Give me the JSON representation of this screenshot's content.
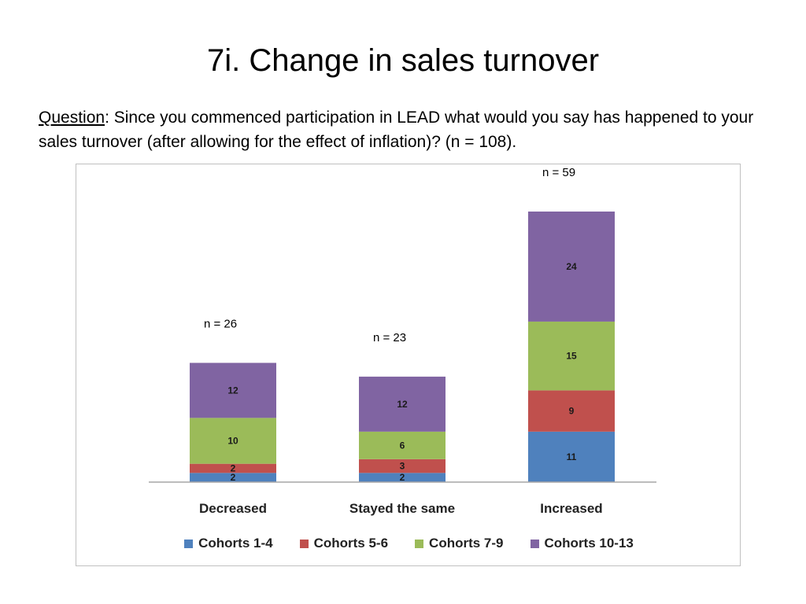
{
  "slide": {
    "title": "7i. Change in sales turnover",
    "question_label": "Question",
    "question_text": ": Since you commenced participation in LEAD what would you say has happened to your sales turnover (after allowing for the effect of inflation)? (n = 108)."
  },
  "chart_data": {
    "type": "bar",
    "stacked": true,
    "categories": [
      "Decreased",
      "Stayed the same",
      "Increased"
    ],
    "series": [
      {
        "name": "Cohorts 1-4",
        "values": [
          2,
          2,
          11
        ],
        "color": "#4F81BD"
      },
      {
        "name": "Cohorts 5-6",
        "values": [
          2,
          3,
          9
        ],
        "color": "#C0504D"
      },
      {
        "name": "Cohorts 7-9",
        "values": [
          10,
          6,
          15
        ],
        "color": "#9BBB59"
      },
      {
        "name": "Cohorts 10-13",
        "values": [
          12,
          12,
          24
        ],
        "color": "#8064A2"
      }
    ],
    "totals_labels": [
      "n = 26",
      "n = 23",
      "n = 59"
    ],
    "title": "",
    "xlabel": "",
    "ylabel": "",
    "ylim": [
      0,
      65
    ],
    "grid": false,
    "legend": "bottom"
  }
}
